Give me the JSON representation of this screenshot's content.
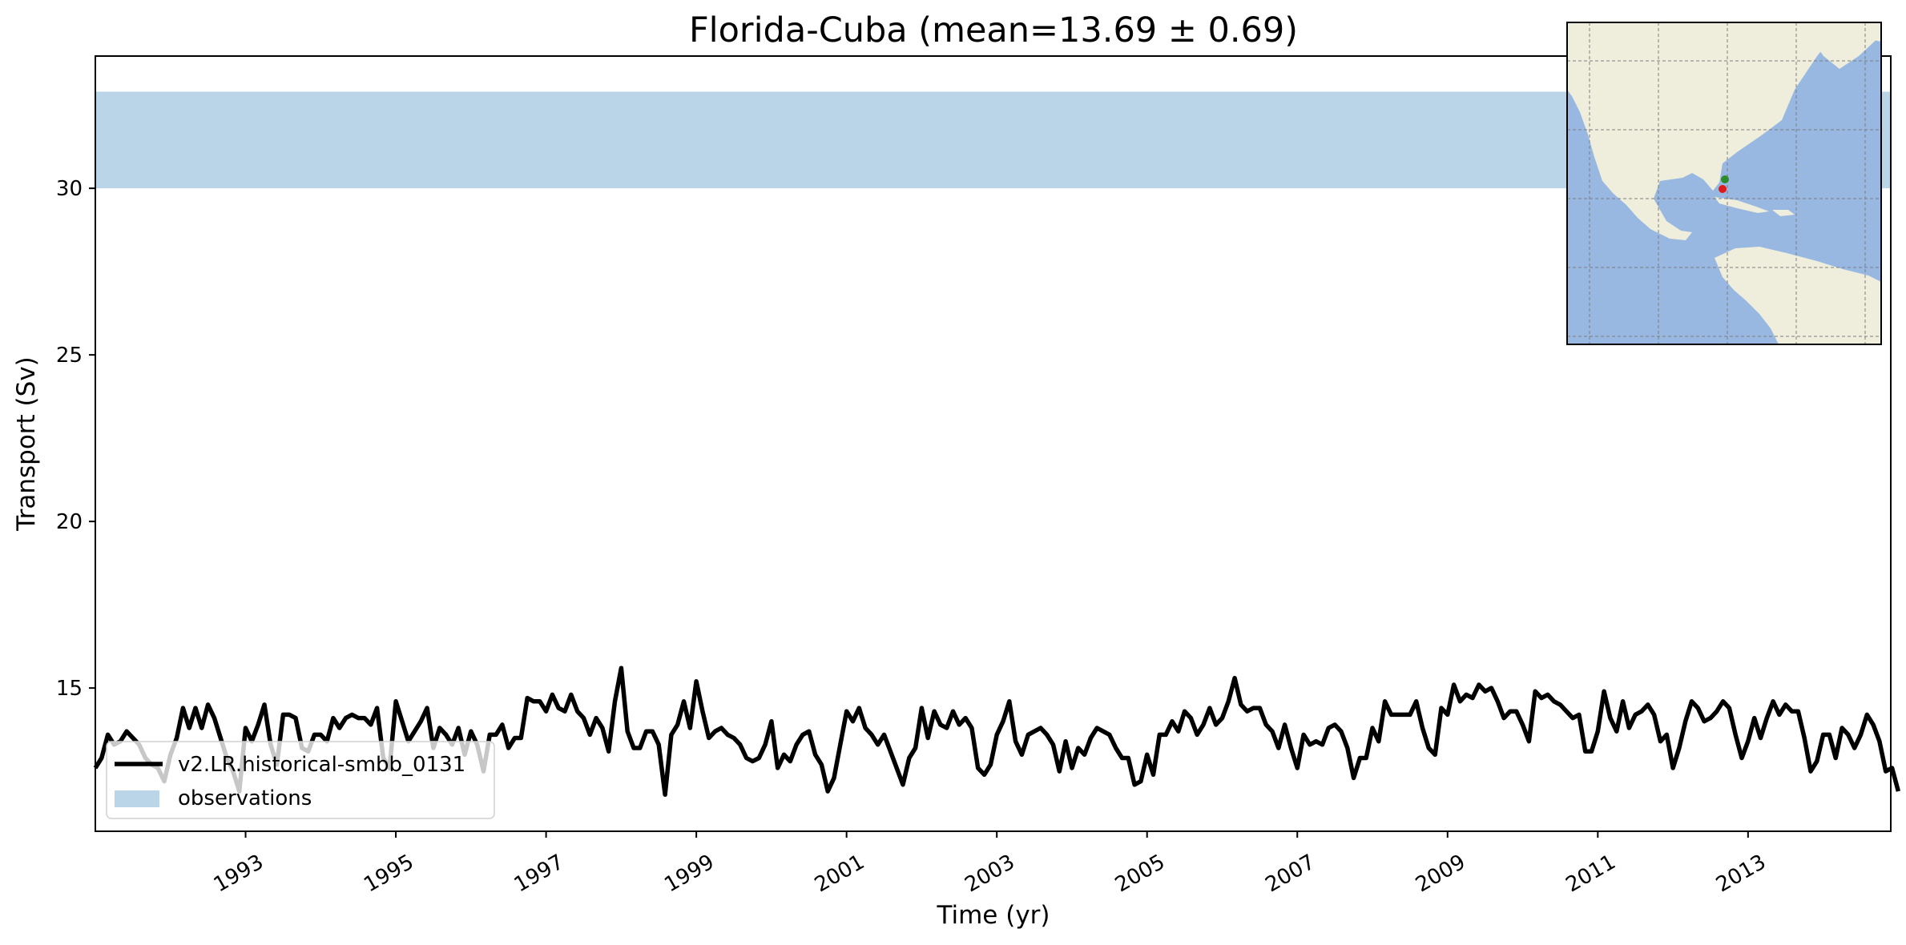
{
  "chart_data": {
    "type": "line",
    "title": "Florida-Cuba (mean=13.69 ± 0.69)",
    "xlabel": "Time (yr)",
    "ylabel": "Transport (Sv)",
    "xlim": [
      1991.0,
      2014.9
    ],
    "ylim": [
      10.7,
      33.97
    ],
    "x_ticks": [
      "1993",
      "1995",
      "1997",
      "1999",
      "2001",
      "2003",
      "2005",
      "2007",
      "2009",
      "2011",
      "2013"
    ],
    "y_ticks": [
      "15",
      "20",
      "25",
      "30"
    ],
    "grid": false,
    "legend_position": "lower-left",
    "observations": {
      "name": "observations",
      "low": 30.0,
      "high": 32.9,
      "color": "#bad4e8"
    },
    "series": [
      {
        "name": "v2.LR.historical-smbb_0131",
        "color": "#000000",
        "x_start": 1991.0,
        "x_step_months": 1,
        "values": [
          12.6,
          12.9,
          13.6,
          13.3,
          13.4,
          13.7,
          13.5,
          13.3,
          12.9,
          12.7,
          12.6,
          12.2,
          13.0,
          13.5,
          14.4,
          13.8,
          14.4,
          13.8,
          14.5,
          14.1,
          13.5,
          12.9,
          12.5,
          11.9,
          13.8,
          13.4,
          13.9,
          14.5,
          13.3,
          12.7,
          14.2,
          14.2,
          14.1,
          13.2,
          13.1,
          13.6,
          13.6,
          13.4,
          14.1,
          13.8,
          14.1,
          14.2,
          14.1,
          14.1,
          13.9,
          14.4,
          12.9,
          12.6,
          14.6,
          14.0,
          13.4,
          13.7,
          14.0,
          14.4,
          13.2,
          13.8,
          13.6,
          13.3,
          13.8,
          13.0,
          13.7,
          13.3,
          12.5,
          13.6,
          13.6,
          13.9,
          13.2,
          13.5,
          13.5,
          14.7,
          14.6,
          14.6,
          14.3,
          14.8,
          14.4,
          14.3,
          14.8,
          14.3,
          14.1,
          13.6,
          14.1,
          13.8,
          13.1,
          14.6,
          15.6,
          13.7,
          13.2,
          13.2,
          13.7,
          13.7,
          13.3,
          11.8,
          13.6,
          13.9,
          14.6,
          13.8,
          15.2,
          14.3,
          13.5,
          13.7,
          13.8,
          13.6,
          13.5,
          13.3,
          12.9,
          12.8,
          12.9,
          13.3,
          14.0,
          12.6,
          13.0,
          12.8,
          13.3,
          13.6,
          13.7,
          13.0,
          12.7,
          11.9,
          12.3,
          13.3,
          14.3,
          14.0,
          14.4,
          13.8,
          13.6,
          13.3,
          13.6,
          13.1,
          12.6,
          12.1,
          12.9,
          13.2,
          14.4,
          13.5,
          14.3,
          13.9,
          13.8,
          14.3,
          13.9,
          14.1,
          13.8,
          12.6,
          12.4,
          12.7,
          13.6,
          14.0,
          14.6,
          13.4,
          13.0,
          13.6,
          13.7,
          13.8,
          13.6,
          13.3,
          12.5,
          13.4,
          12.6,
          13.2,
          13.0,
          13.5,
          13.8,
          13.7,
          13.6,
          13.2,
          12.9,
          12.9,
          12.1,
          12.2,
          13.0,
          12.4,
          13.6,
          13.6,
          14.0,
          13.7,
          14.3,
          14.1,
          13.6,
          13.9,
          14.4,
          13.9,
          14.1,
          14.6,
          15.3,
          14.5,
          14.3,
          14.4,
          14.4,
          13.9,
          13.7,
          13.2,
          13.9,
          13.2,
          12.6,
          13.6,
          13.3,
          13.4,
          13.3,
          13.8,
          13.9,
          13.7,
          13.2,
          12.3,
          12.9,
          12.9,
          13.8,
          13.4,
          14.6,
          14.2,
          14.2,
          14.2,
          14.2,
          14.6,
          13.8,
          13.2,
          13.0,
          14.4,
          14.2,
          15.1,
          14.6,
          14.8,
          14.7,
          15.1,
          14.9,
          15.0,
          14.6,
          14.1,
          14.3,
          14.3,
          13.9,
          13.4,
          14.9,
          14.7,
          14.8,
          14.6,
          14.5,
          14.3,
          14.1,
          14.2,
          13.1,
          13.1,
          13.7,
          14.9,
          14.1,
          13.7,
          14.6,
          13.8,
          14.2,
          14.3,
          14.5,
          14.2,
          13.4,
          13.6,
          12.6,
          13.2,
          14.0,
          14.6,
          14.4,
          14.0,
          14.1,
          14.3,
          14.6,
          14.4,
          13.6,
          12.9,
          13.4,
          14.1,
          13.5,
          14.1,
          14.6,
          14.2,
          14.5,
          14.3,
          14.3,
          13.5,
          12.5,
          12.8,
          13.6,
          13.6,
          12.9,
          13.8,
          13.6,
          13.2,
          13.6,
          14.2,
          13.9,
          13.4,
          12.5,
          12.6,
          11.9
        ]
      }
    ]
  },
  "inset_map": {
    "land_color": "#efeedc",
    "ocean_color": "#98b8e2",
    "markers": [
      {
        "color": "#2e8b2e"
      },
      {
        "color": "#e01818"
      }
    ]
  }
}
